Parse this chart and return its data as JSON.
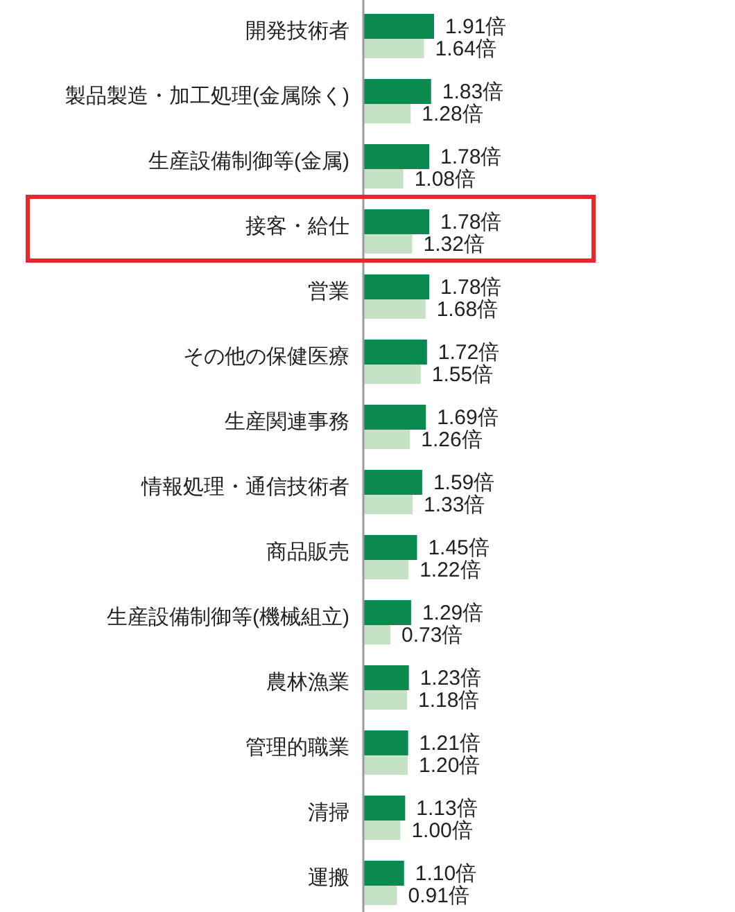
{
  "chart_data": {
    "type": "bar",
    "orientation": "horizontal",
    "categories": [
      "開発技術者",
      "製品製造・加工処理(金属除く)",
      "生産設備制御等(金属)",
      "接客・給仕",
      "営業",
      "その他の保健医療",
      "生産関連事務",
      "情報処理・通信技術者",
      "商品販売",
      "生産設備制御等(機械組立)",
      "農林漁業",
      "管理的職業",
      "清掃",
      "運搬"
    ],
    "series": [
      {
        "color": "#0b8a50",
        "values": [
          1.91,
          1.83,
          1.78,
          1.78,
          1.78,
          1.72,
          1.69,
          1.59,
          1.45,
          1.29,
          1.23,
          1.21,
          1.13,
          1.1
        ],
        "value_labels": [
          "1.91倍",
          "1.83倍",
          "1.78倍",
          "1.78倍",
          "1.78倍",
          "1.72倍",
          "1.69倍",
          "1.59倍",
          "1.45倍",
          "1.29倍",
          "1.23倍",
          "1.21倍",
          "1.13倍",
          "1.10倍"
        ]
      },
      {
        "color": "#c5e2c4",
        "values": [
          1.64,
          1.28,
          1.08,
          1.32,
          1.68,
          1.55,
          1.26,
          1.33,
          1.22,
          0.73,
          1.18,
          1.2,
          1.0,
          0.91
        ],
        "value_labels": [
          "1.64倍",
          "1.28倍",
          "1.08倍",
          "1.32倍",
          "1.68倍",
          "1.55倍",
          "1.26倍",
          "1.33倍",
          "1.22倍",
          "0.73倍",
          "1.18倍",
          "1.20倍",
          "1.00倍",
          "0.91倍"
        ]
      }
    ],
    "stacked": false
  }
}
